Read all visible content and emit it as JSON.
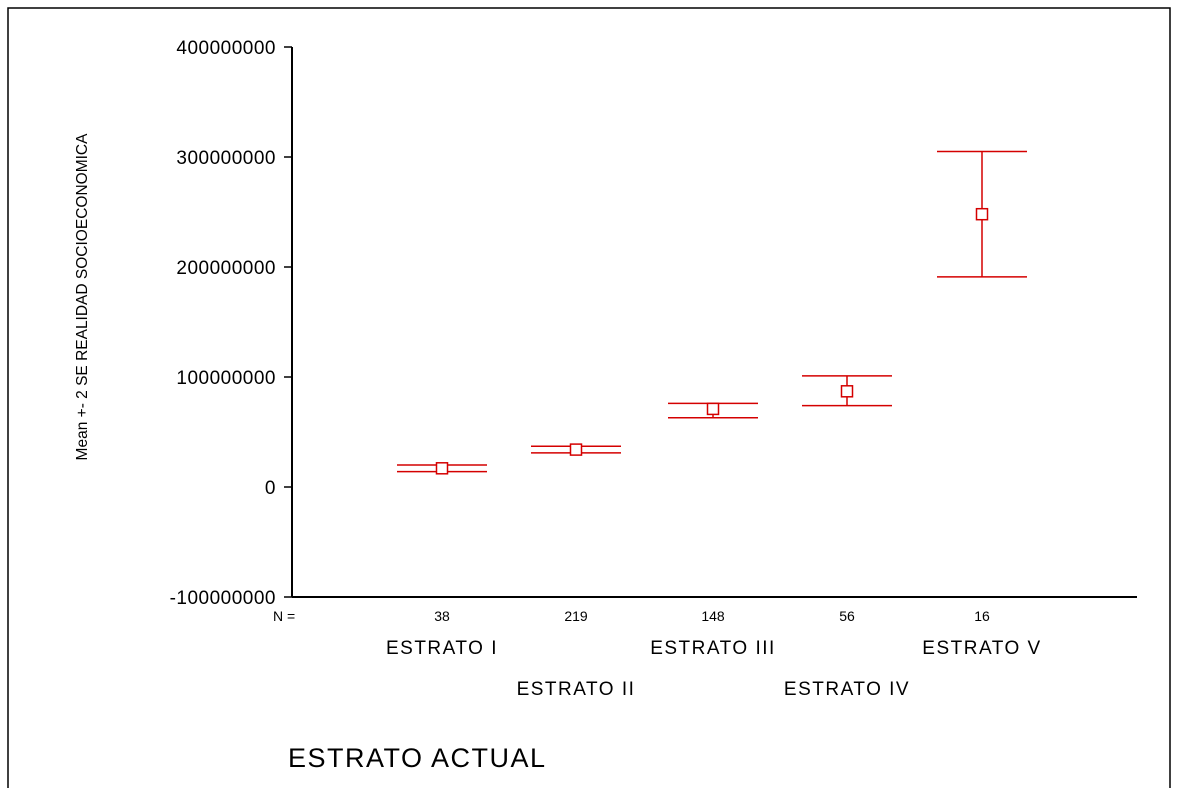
{
  "chart_data": {
    "type": "errorbar",
    "ylabel": "Mean +- 2 SE REALIDAD SOCIOECONOMICA",
    "xlabel": "ESTRATO ACTUAL",
    "n_label": "N =",
    "ylim": [
      -100000000,
      400000000
    ],
    "yticks": [
      "400000000",
      "300000000",
      "200000000",
      "100000000",
      "0",
      "-100000000"
    ],
    "ytick_values": [
      400000000,
      300000000,
      200000000,
      100000000,
      0,
      -100000000
    ],
    "categories": [
      "ESTRATO I",
      "ESTRATO II",
      "ESTRATO III",
      "ESTRATO IV",
      "ESTRATO V"
    ],
    "n": [
      "38",
      "219",
      "148",
      "56",
      "16"
    ],
    "mean": [
      17000000,
      34000000,
      71000000,
      87000000,
      248000000
    ],
    "lower": [
      14000000,
      31000000,
      63000000,
      74000000,
      191000000
    ],
    "upper": [
      20000000,
      37000000,
      76000000,
      101000000,
      305000000
    ],
    "color": "#d40000"
  }
}
